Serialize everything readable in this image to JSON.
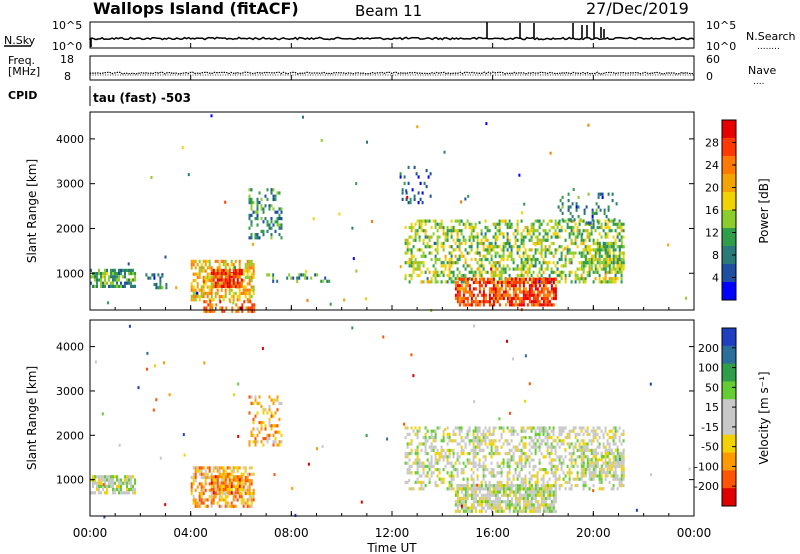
{
  "header": {
    "site": "Wallops Island (fitACF)",
    "beam": "Beam 11",
    "date": "27/Dec/2019"
  },
  "noise_panel": {
    "left_label": "N.Sky",
    "right_label": "N.Search",
    "left_ticks": [
      "10^5",
      "10^0"
    ],
    "right_ticks": [
      "10^5",
      "10^0"
    ],
    "search_marker": "........"
  },
  "freq_panel": {
    "left_label_1": "Freq.",
    "left_label_2": "[MHz]",
    "left_ticks": [
      "18",
      "8"
    ],
    "right_label": "Nave",
    "right_ticks": [
      "60",
      "0"
    ],
    "nave_marker": "...."
  },
  "cpid": {
    "label": "CPID",
    "value": "tau (fast) -503"
  },
  "chart_data": [
    {
      "type": "heatmap",
      "name": "Power",
      "ylabel": "Slant Range [km]",
      "ylim": [
        180,
        4600
      ],
      "yticks": [
        1000,
        2000,
        3000,
        4000
      ],
      "colorbar_label": "Power [dB]",
      "colorbar_ticks": [
        "28",
        "24",
        "20",
        "16",
        "12",
        "8",
        "4"
      ],
      "colorbar_colors": [
        "#e80000",
        "#ff3a00",
        "#ff7a00",
        "#f5a300",
        "#f2d200",
        "#8ccc2c",
        "#2f9d4a",
        "#2a7a7a",
        "#1f4fa0",
        "#0000ff"
      ],
      "blobs": [
        {
          "t0": 0.0,
          "t1": 1.8,
          "r0": 700,
          "r1": 1100,
          "level": 0.35,
          "density": 0.7
        },
        {
          "t0": 2.2,
          "t1": 3.0,
          "r0": 700,
          "r1": 1000,
          "level": 0.25,
          "density": 0.3
        },
        {
          "t0": 4.0,
          "t1": 6.5,
          "r0": 400,
          "r1": 1300,
          "level": 0.6,
          "density": 0.6
        },
        {
          "t0": 4.8,
          "t1": 6.0,
          "r0": 700,
          "r1": 1100,
          "level": 0.9,
          "density": 0.8
        },
        {
          "t0": 4.5,
          "t1": 6.5,
          "r0": 180,
          "r1": 400,
          "level": 0.8,
          "density": 0.5
        },
        {
          "t0": 6.3,
          "t1": 7.6,
          "r0": 1800,
          "r1": 2900,
          "level": 0.3,
          "density": 0.35
        },
        {
          "t0": 7.0,
          "t1": 9.5,
          "r0": 800,
          "r1": 1000,
          "level": 0.3,
          "density": 0.3
        },
        {
          "t0": 12.5,
          "t1": 21.2,
          "r0": 800,
          "r1": 2200,
          "level": 0.45,
          "density": 0.45
        },
        {
          "t0": 14.5,
          "t1": 18.5,
          "r0": 300,
          "r1": 900,
          "level": 0.85,
          "density": 0.75
        },
        {
          "t0": 19.5,
          "t1": 21.2,
          "r0": 1100,
          "r1": 1700,
          "level": 0.45,
          "density": 0.55
        },
        {
          "t0": 12.3,
          "t1": 13.5,
          "r0": 2600,
          "r1": 3400,
          "level": 0.2,
          "density": 0.15
        },
        {
          "t0": 18.5,
          "t1": 21.0,
          "r0": 2100,
          "r1": 2800,
          "level": 0.25,
          "density": 0.2
        }
      ]
    },
    {
      "type": "heatmap",
      "name": "Velocity",
      "ylabel": "Slant Range [km]",
      "ylim": [
        180,
        4600
      ],
      "yticks": [
        1000,
        2000,
        3000,
        4000
      ],
      "colorbar_label": "Velocity [m s⁻¹]",
      "colorbar_ticks": [
        "200",
        "100",
        "50",
        "15",
        "-15",
        "-50",
        "-100",
        "-200"
      ],
      "colorbar_colors": [
        "#1f3fc0",
        "#2a6f9a",
        "#2f9d4a",
        "#66cc33",
        "#c8c8c8",
        "#c8c8c8",
        "#f2d200",
        "#ff9900",
        "#ff5500",
        "#e00000"
      ],
      "blobs": [
        {
          "t0": 0.0,
          "t1": 1.8,
          "r0": 700,
          "r1": 1100,
          "level": 0.5,
          "density": 0.75
        },
        {
          "t0": 4.0,
          "t1": 6.5,
          "r0": 400,
          "r1": 1300,
          "level": 0.3,
          "density": 0.6
        },
        {
          "t0": 4.8,
          "t1": 6.0,
          "r0": 700,
          "r1": 1100,
          "level": 0.25,
          "density": 0.8
        },
        {
          "t0": 6.3,
          "t1": 7.6,
          "r0": 1800,
          "r1": 2900,
          "level": 0.3,
          "density": 0.3
        },
        {
          "t0": 12.5,
          "t1": 21.2,
          "r0": 800,
          "r1": 2200,
          "level": 0.5,
          "density": 0.45
        },
        {
          "t0": 14.5,
          "t1": 18.5,
          "r0": 300,
          "r1": 900,
          "level": 0.5,
          "density": 0.8
        },
        {
          "t0": 19.5,
          "t1": 21.2,
          "r0": 1100,
          "r1": 1700,
          "level": 0.5,
          "density": 0.55
        }
      ]
    }
  ],
  "xaxis": {
    "label": "Time UT",
    "ticks": [
      "00:00",
      "04:00",
      "08:00",
      "12:00",
      "16:00",
      "20:00",
      "00:00"
    ]
  }
}
